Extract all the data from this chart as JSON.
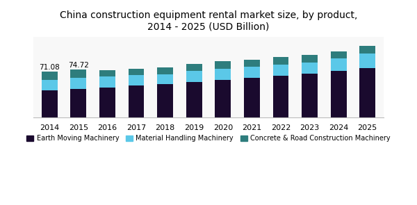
{
  "title": "China construction equipment rental market size, by product,\n2014 - 2025 (USD Billion)",
  "years": [
    2014,
    2015,
    2016,
    2017,
    2018,
    2019,
    2020,
    2021,
    2022,
    2023,
    2024,
    2025
  ],
  "earth_moving": [
    42.0,
    44.5,
    47.0,
    49.5,
    52.0,
    55.5,
    58.5,
    62.0,
    65.0,
    68.5,
    72.5,
    77.0
  ],
  "material_handling": [
    16.0,
    17.0,
    16.5,
    16.0,
    15.5,
    16.5,
    17.5,
    17.0,
    17.5,
    17.0,
    19.0,
    22.0
  ],
  "concrete_road": [
    13.08,
    13.22,
    10.5,
    10.5,
    10.5,
    11.0,
    11.5,
    10.5,
    12.0,
    12.0,
    11.5,
    12.0
  ],
  "bar_annotations": {
    "2014": "71.08",
    "2015": "74.72"
  },
  "color_earth": "#1a0a2e",
  "color_material": "#5bc8e8",
  "color_concrete": "#2e7d7d",
  "legend_labels": [
    "Earth Moving Machinery",
    "Material Handling Machinery",
    "Concrete & Road Construction Machinery"
  ],
  "title_fontsize": 10,
  "bar_width": 0.55,
  "ylim": [
    0,
    125
  ],
  "bg_color": "#f8f8f8",
  "figsize": [
    6.0,
    2.95
  ],
  "dpi": 100
}
